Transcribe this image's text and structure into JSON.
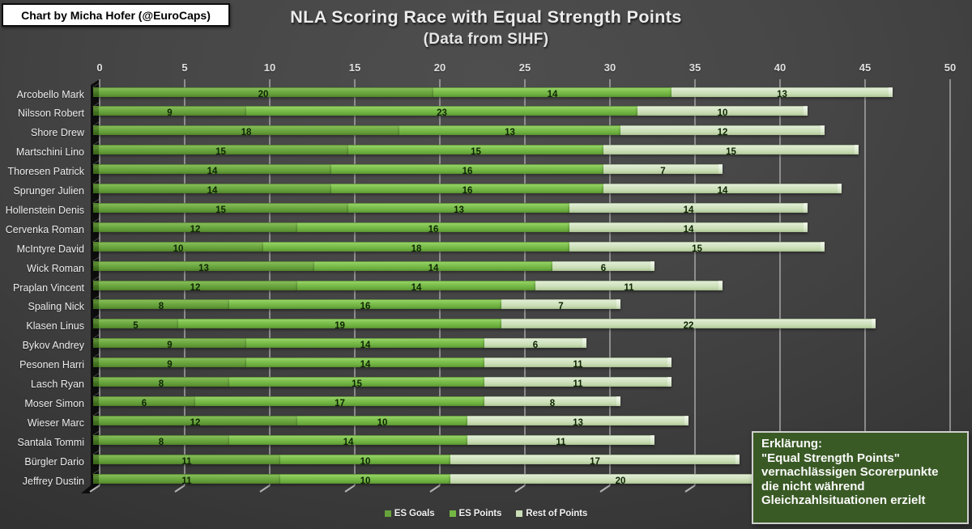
{
  "credit_box": {
    "label": "Chart by Micha Hofer (@EuroCaps)"
  },
  "title": "NLA Scoring Race with Equal Strength Points",
  "subtitle": "(Data from SIHF)",
  "chart_data": {
    "type": "bar",
    "variant": "horizontal-stacked-3d",
    "title": "NLA Scoring Race with Equal Strength Points",
    "subtitle": "(Data from SIHF)",
    "xlabel": "",
    "ylabel": "",
    "xlim": [
      0,
      50
    ],
    "x_ticks": [
      0,
      5,
      10,
      15,
      20,
      25,
      30,
      35,
      40,
      45,
      50
    ],
    "grid": true,
    "legend_position": "bottom",
    "axis_position": "top",
    "categories": [
      "Arcobello Mark",
      "Nilsson Robert",
      "Shore Drew",
      "Martschini Lino",
      "Thoresen Patrick",
      "Sprunger Julien",
      "Hollenstein Denis",
      "Cervenka Roman",
      "McIntyre David",
      "Wick Roman",
      "Praplan Vincent",
      "Spaling Nick",
      "Klasen Linus",
      "Bykov Andrey",
      "Pesonen Harri",
      "Lasch Ryan",
      "Moser Simon",
      "Wieser Marc",
      "Santala Tommi",
      "Bürgler Dario",
      "Jeffrey Dustin"
    ],
    "series": [
      {
        "name": "ES Goals",
        "color": "#67a23c",
        "values": [
          20,
          9,
          18,
          15,
          14,
          14,
          15,
          12,
          10,
          13,
          12,
          8,
          5,
          9,
          9,
          8,
          6,
          12,
          8,
          11,
          11
        ]
      },
      {
        "name": "ES Points",
        "color": "#74b744",
        "values": [
          14,
          23,
          13,
          15,
          16,
          16,
          13,
          16,
          18,
          14,
          14,
          16,
          19,
          14,
          14,
          15,
          17,
          10,
          14,
          10,
          10
        ]
      },
      {
        "name": "Rest of Points",
        "color": "#c9ddb6",
        "values": [
          13,
          10,
          12,
          15,
          7,
          14,
          14,
          14,
          15,
          6,
          11,
          7,
          22,
          6,
          11,
          11,
          8,
          13,
          11,
          17,
          20
        ]
      }
    ]
  },
  "annotation": {
    "lines": [
      "Erklärung:",
      "\"Equal Strength Points\"",
      "vernachlässigen Scorerpunkte",
      "die nicht während",
      "Gleichzahlsituationen erzielt"
    ]
  },
  "colors": {
    "background_center": "#4d4d4d",
    "background_edge": "#2a2a2a",
    "wall": "#0d0d0d",
    "gridline": "#a6a6a6",
    "tick": "#b4b4b4",
    "value_label": "#0e2503",
    "annotation_bg": "#3a5a25",
    "annotation_border": "#cfcfcf",
    "credit_bg": "#ffffff",
    "credit_text": "#000000"
  }
}
